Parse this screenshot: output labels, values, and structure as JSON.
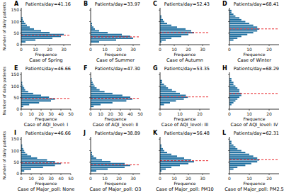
{
  "chart_data": [
    {
      "type": "histogram",
      "orientation": "horizontal",
      "panel": "A",
      "title": "Patients/day=41.16",
      "caption": "Case of Spring",
      "xlabel": "Frequence",
      "ylabel": "Number of daily patients",
      "color": "#1f6fa0",
      "reference_line": 41.16,
      "bins": [
        0,
        8,
        16,
        24,
        32,
        40,
        48,
        56,
        64,
        72,
        80,
        88,
        96,
        104,
        112,
        120,
        128,
        136,
        144,
        152,
        160
      ],
      "values": [
        0,
        3,
        10,
        22,
        28,
        30,
        20,
        14,
        9,
        6,
        4,
        3,
        2,
        1,
        1,
        0,
        0,
        0,
        0,
        0
      ],
      "xlim": [
        0,
        35
      ],
      "xticks": [
        0,
        10,
        20,
        30
      ],
      "ylim": [
        0,
        160
      ],
      "yticks": [
        0,
        50,
        100,
        150
      ],
      "tick_labels": true
    },
    {
      "type": "histogram",
      "orientation": "horizontal",
      "panel": "B",
      "title": "Patients/day=33.97",
      "caption": "Case of Summer",
      "xlabel": "Frequence",
      "color": "#1f6fa0",
      "reference_line": 33.97,
      "bins": [
        0,
        8,
        16,
        24,
        32,
        40,
        48,
        56,
        64,
        72,
        80,
        88,
        96,
        104,
        112,
        120,
        128,
        136,
        144,
        152,
        160
      ],
      "values": [
        0,
        6,
        18,
        30,
        28,
        22,
        12,
        6,
        3,
        2,
        1,
        1,
        0,
        0,
        0,
        0,
        0,
        0,
        0,
        0
      ],
      "xlim": [
        0,
        35
      ],
      "xticks": [
        0,
        10,
        20,
        30
      ],
      "ylim": [
        0,
        160
      ],
      "yticks": [
        0,
        50,
        100,
        150
      ],
      "tick_labels": "x"
    },
    {
      "type": "histogram",
      "orientation": "horizontal",
      "panel": "C",
      "title": "Patients/day=52.43",
      "caption": "Case of Autumn",
      "xlabel": "Frequence",
      "color": "#1f6fa0",
      "reference_line": 52.43,
      "bins": [
        0,
        8,
        16,
        24,
        32,
        40,
        48,
        56,
        64,
        72,
        80,
        88,
        96,
        104,
        112,
        120,
        128,
        136,
        144,
        152,
        160
      ],
      "values": [
        0,
        1,
        4,
        8,
        15,
        20,
        24,
        22,
        18,
        12,
        8,
        5,
        3,
        2,
        1,
        1,
        0,
        0,
        0,
        0
      ],
      "xlim": [
        0,
        35
      ],
      "xticks": [
        0,
        10,
        20,
        30
      ],
      "ylim": [
        0,
        160
      ],
      "yticks": [
        0,
        50,
        100,
        150
      ],
      "tick_labels": "x"
    },
    {
      "type": "histogram",
      "orientation": "horizontal",
      "panel": "D",
      "title": "Patients/day=68.41",
      "caption": "Case of Winter",
      "xlabel": "Frequence",
      "color": "#1f6fa0",
      "reference_line": 68.41,
      "bins": [
        0,
        8,
        16,
        24,
        32,
        40,
        48,
        56,
        64,
        72,
        80,
        88,
        96,
        104,
        112,
        120,
        128,
        136,
        144,
        152,
        160
      ],
      "values": [
        0,
        0,
        2,
        4,
        6,
        9,
        12,
        14,
        15,
        14,
        12,
        10,
        8,
        6,
        5,
        3,
        2,
        1,
        1,
        0
      ],
      "xlim": [
        0,
        25
      ],
      "xticks": [
        0,
        10,
        20
      ],
      "ylim": [
        0,
        160
      ],
      "yticks": [
        0,
        50,
        100,
        150
      ],
      "tick_labels": "x"
    },
    {
      "type": "histogram",
      "orientation": "horizontal",
      "panel": "E",
      "title": "Patients/day=46.66",
      "caption": "Case of AQI_level: I",
      "xlabel": "Frequence",
      "ylabel": "Number of daily patients",
      "color": "#1f6fa0",
      "reference_line": 46.66,
      "bins": [
        0,
        8,
        16,
        24,
        32,
        40,
        48,
        56,
        64,
        72,
        80,
        88,
        96,
        104,
        112,
        120,
        128,
        136,
        144,
        152,
        160
      ],
      "values": [
        0,
        2,
        8,
        18,
        30,
        34,
        28,
        20,
        12,
        7,
        4,
        3,
        2,
        1,
        1,
        0,
        0,
        0,
        0,
        0
      ],
      "xlim": [
        0,
        50
      ],
      "xticks": [
        0,
        10,
        20,
        30,
        40,
        50
      ],
      "ylim": [
        0,
        160
      ],
      "yticks": [
        0,
        50,
        100,
        150
      ],
      "tick_labels": true
    },
    {
      "type": "histogram",
      "orientation": "horizontal",
      "panel": "F",
      "title": "Patients/day=47.30",
      "caption": "Case of AQI_level: II",
      "xlabel": "Frequence",
      "color": "#1f6fa0",
      "reference_line": 47.3,
      "bins": [
        0,
        8,
        16,
        24,
        32,
        40,
        48,
        56,
        64,
        72,
        80,
        88,
        96,
        104,
        112,
        120,
        128,
        136,
        144,
        152,
        160
      ],
      "values": [
        0,
        3,
        10,
        22,
        36,
        42,
        40,
        32,
        22,
        14,
        9,
        6,
        4,
        3,
        2,
        1,
        1,
        0,
        0,
        0
      ],
      "xlim": [
        0,
        50
      ],
      "xticks": [
        0,
        10,
        20,
        30,
        40,
        50
      ],
      "ylim": [
        0,
        160
      ],
      "yticks": [
        0,
        50,
        100,
        150
      ],
      "tick_labels": "x"
    },
    {
      "type": "histogram",
      "orientation": "horizontal",
      "panel": "G",
      "title": "Patients/day=53.35",
      "caption": "Case of AQI_level: III",
      "xlabel": "Frequence",
      "color": "#1f6fa0",
      "reference_line": 53.35,
      "bins": [
        0,
        8,
        16,
        24,
        32,
        40,
        48,
        56,
        64,
        72,
        80,
        88,
        96,
        104,
        112,
        120,
        128,
        136,
        144,
        152,
        160
      ],
      "values": [
        0,
        0,
        2,
        5,
        8,
        12,
        14,
        13,
        10,
        8,
        6,
        4,
        3,
        2,
        1,
        1,
        0,
        0,
        0,
        0
      ],
      "xlim": [
        0,
        25
      ],
      "xticks": [
        0,
        10,
        20
      ],
      "ylim": [
        0,
        160
      ],
      "yticks": [
        0,
        50,
        100,
        150
      ],
      "tick_labels": "x"
    },
    {
      "type": "histogram",
      "orientation": "horizontal",
      "panel": "H",
      "title": "Patients/day=68.29",
      "caption": "Case of AQI_level: IV",
      "xlabel": "Frequence",
      "color": "#1f6fa0",
      "reference_line": 68.29,
      "bins": [
        0,
        8,
        16,
        24,
        32,
        40,
        48,
        56,
        64,
        72,
        80,
        88,
        96,
        104,
        112,
        120,
        128,
        136,
        144,
        152,
        160
      ],
      "values": [
        0,
        0,
        1,
        2,
        3,
        4,
        5,
        6,
        6,
        5,
        5,
        4,
        3,
        2,
        2,
        1,
        1,
        0,
        0,
        0
      ],
      "xlim": [
        0,
        25
      ],
      "xticks": [
        0,
        10,
        20
      ],
      "ylim": [
        0,
        160
      ],
      "yticks": [
        0,
        50,
        100,
        150
      ],
      "tick_labels": "x"
    },
    {
      "type": "histogram",
      "orientation": "horizontal",
      "panel": "I",
      "title": "Patients/day=46.66",
      "caption": "Case of Major_poll: None",
      "xlabel": "Frequence",
      "ylabel": "Number of daily patients",
      "color": "#1f6fa0",
      "reference_line": 46.66,
      "bins": [
        0,
        8,
        16,
        24,
        32,
        40,
        48,
        56,
        64,
        72,
        80,
        88,
        96,
        104,
        112,
        120,
        128,
        136,
        144,
        152,
        160
      ],
      "values": [
        0,
        3,
        10,
        22,
        34,
        40,
        34,
        26,
        16,
        10,
        6,
        4,
        3,
        2,
        1,
        1,
        0,
        0,
        0,
        0
      ],
      "xlim": [
        0,
        50
      ],
      "xticks": [
        0,
        10,
        20,
        30,
        40,
        50
      ],
      "ylim": [
        0,
        160
      ],
      "yticks": [
        0,
        50,
        100,
        150
      ],
      "tick_labels": true
    },
    {
      "type": "histogram",
      "orientation": "horizontal",
      "panel": "J",
      "title": "Patients/day=38.89",
      "caption": "Case of Major_poll: O3",
      "xlabel": "Frequence",
      "color": "#1f6fa0",
      "reference_line": 38.89,
      "bins": [
        0,
        8,
        16,
        24,
        32,
        40,
        48,
        56,
        64,
        72,
        80,
        88,
        96,
        104,
        112,
        120,
        128,
        136,
        144,
        152,
        160
      ],
      "values": [
        0,
        4,
        12,
        24,
        28,
        24,
        14,
        8,
        4,
        2,
        1,
        1,
        0,
        0,
        0,
        0,
        0,
        0,
        0,
        0
      ],
      "xlim": [
        0,
        35
      ],
      "xticks": [
        0,
        10,
        20,
        30
      ],
      "ylim": [
        0,
        160
      ],
      "yticks": [
        0,
        50,
        100,
        150
      ],
      "tick_labels": "x"
    },
    {
      "type": "histogram",
      "orientation": "horizontal",
      "panel": "K",
      "title": "Patients/day=56.48",
      "caption": "Case of Major_poll: PM10",
      "xlabel": "Frequence",
      "color": "#1f6fa0",
      "reference_line": 56.48,
      "bins": [
        0,
        8,
        16,
        24,
        32,
        40,
        48,
        56,
        64,
        72,
        80,
        88,
        96,
        104,
        112,
        120,
        128,
        136,
        144,
        152,
        160
      ],
      "values": [
        0,
        1,
        4,
        8,
        14,
        20,
        24,
        22,
        17,
        12,
        8,
        5,
        3,
        2,
        1,
        1,
        0,
        0,
        0,
        0
      ],
      "xlim": [
        0,
        35
      ],
      "xticks": [
        0,
        10,
        20,
        30
      ],
      "ylim": [
        0,
        160
      ],
      "yticks": [
        0,
        50,
        100,
        150
      ],
      "tick_labels": "x"
    },
    {
      "type": "histogram",
      "orientation": "horizontal",
      "panel": "L",
      "title": "Patients/day=62.31",
      "caption": "Case of Major_poll: PM2.5",
      "xlabel": "Frequence",
      "color": "#1f6fa0",
      "reference_line": 62.31,
      "bins": [
        0,
        8,
        16,
        24,
        32,
        40,
        48,
        56,
        64,
        72,
        80,
        88,
        96,
        104,
        112,
        120,
        128,
        136,
        144,
        152,
        160
      ],
      "values": [
        0,
        0,
        2,
        4,
        8,
        11,
        14,
        15,
        14,
        12,
        10,
        8,
        6,
        4,
        3,
        2,
        1,
        1,
        0,
        0
      ],
      "xlim": [
        0,
        25
      ],
      "xticks": [
        0,
        10,
        20
      ],
      "ylim": [
        0,
        160
      ],
      "yticks": [
        0,
        50,
        100,
        150
      ],
      "tick_labels": "x"
    }
  ]
}
